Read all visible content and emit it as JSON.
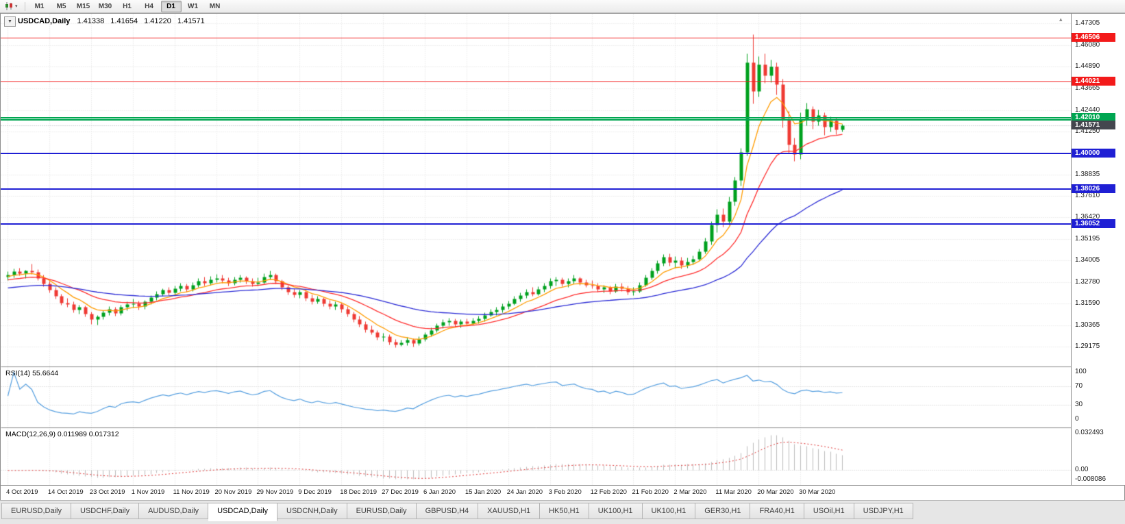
{
  "toolbar": {
    "chart_type_dropdown_glyph": "▾",
    "timeframes": [
      "M1",
      "M5",
      "M15",
      "M30",
      "H1",
      "H4",
      "D1",
      "W1",
      "MN"
    ],
    "active_timeframe": "D1"
  },
  "chart": {
    "title": {
      "dropdown_glyph": "▼",
      "symbol": "USDCAD,Daily",
      "open": "1.41338",
      "high": "1.41654",
      "low": "1.41220",
      "close": "1.41571"
    },
    "shift_marker_glyph": "▴",
    "colors": {
      "up": "#00a11e",
      "down": "#ef3a34",
      "ma_fast": "#ff9c00",
      "ma_mid": "#ff2e2e",
      "ma_slow": "#2b2bd6",
      "resistance": "#f31a1a",
      "pivot": "#00a651",
      "support": "#1f1fd4",
      "current_price_tag": "#44464e",
      "rsi_line": "#559fe0",
      "macd_hist": "#bdbdbd",
      "macd_signal": "#e03131",
      "grid": "#dedede"
    }
  },
  "rsi_panel": {
    "label": "RSI(14) 55.6644",
    "scale_ticks": [
      100,
      70,
      30,
      0
    ]
  },
  "macd_panel": {
    "label": "MACD(12,26,9) 0.011989 0.017312",
    "scale_ticks": [
      {
        "value": 0.032493,
        "text": "0.032493"
      },
      {
        "value": 0,
        "text": "0.00"
      },
      {
        "value": -0.008086,
        "text": "-0.008086"
      }
    ]
  },
  "bottom_tabs": {
    "items": [
      "EURUSD,Daily",
      "USDCHF,Daily",
      "AUDUSD,Daily",
      "USDCAD,Daily",
      "USDCNH,Daily",
      "EURUSD,Daily",
      "GBPUSD,H4",
      "XAUUSD,H1",
      "HK50,H1",
      "UK100,H1",
      "UK100,H1",
      "GER30,H1",
      "FRA40,H1",
      "USOil,H1",
      "USDJPY,H1"
    ],
    "active_index": 3
  },
  "chart_data": {
    "type": "candlestick",
    "symbol": "USDCAD",
    "timeframe": "Daily",
    "last_ohlc": {
      "open": 1.41338,
      "high": 1.41654,
      "low": 1.4122,
      "close": 1.41571
    },
    "ylim": [
      1.29175,
      1.47305
    ],
    "price_ticks": [
      1.47305,
      1.4608,
      1.4489,
      1.43665,
      1.4244,
      1.4125,
      1.38835,
      1.3761,
      1.3642,
      1.35195,
      1.34005,
      1.3278,
      1.3159,
      1.30365,
      1.29175
    ],
    "x_tick_labels": [
      "4 Oct 2019",
      "14 Oct 2019",
      "23 Oct 2019",
      "1 Nov 2019",
      "11 Nov 2019",
      "20 Nov 2019",
      "29 Nov 2019",
      "9 Dec 2019",
      "18 Dec 2019",
      "27 Dec 2019",
      "6 Jan 2020",
      "15 Jan 2020",
      "24 Jan 2020",
      "3 Feb 2020",
      "12 Feb 2020",
      "21 Feb 2020",
      "2 Mar 2020",
      "11 Mar 2020",
      "20 Mar 2020",
      "30 Mar 2020"
    ],
    "bars_per_x_tick": 7,
    "horizontal_levels": {
      "resistance": [
        {
          "price": 1.46506,
          "tagged": true
        },
        {
          "price": 1.44021,
          "tagged": true
        }
      ],
      "pivot": [
        {
          "price": 1.4201,
          "tagged": true
        },
        {
          "price": 1.4188,
          "tagged": false
        }
      ],
      "support": [
        {
          "price": 1.4,
          "tagged": true
        },
        {
          "price": 1.38026,
          "tagged": true
        },
        {
          "price": 1.36052,
          "tagged": true
        }
      ]
    },
    "current_price": 1.41571,
    "moving_averages": [
      {
        "name": "ma-fast",
        "type": "ema",
        "period": 7,
        "seed": 1.331,
        "color_key": "ma_fast"
      },
      {
        "name": "ma-medium",
        "type": "ema",
        "period": 18,
        "seed": 1.329,
        "color_key": "ma_mid"
      },
      {
        "name": "ma-slow",
        "type": "ema",
        "period": 50,
        "seed": 1.3245,
        "color_key": "ma_slow"
      }
    ],
    "rsi": {
      "period": 14,
      "display_value": 55.6644,
      "levels": [
        70,
        30
      ]
    },
    "macd": {
      "fast": 12,
      "slow": 26,
      "signal": 9,
      "display_macd": 0.011989,
      "display_signal": 0.017312,
      "scale_max": 0.032493,
      "scale_min": -0.008086
    },
    "candles": [
      [
        1.331,
        1.334,
        1.329,
        1.3322
      ],
      [
        1.3322,
        1.3355,
        1.3305,
        1.334
      ],
      [
        1.334,
        1.336,
        1.3318,
        1.333
      ],
      [
        1.333,
        1.3348,
        1.33,
        1.3342
      ],
      [
        1.3342,
        1.3382,
        1.3325,
        1.3335
      ],
      [
        1.3335,
        1.335,
        1.329,
        1.33
      ],
      [
        1.33,
        1.332,
        1.3255,
        1.327
      ],
      [
        1.327,
        1.3285,
        1.322,
        1.3235
      ],
      [
        1.3235,
        1.325,
        1.3185,
        1.32
      ],
      [
        1.32,
        1.3215,
        1.315,
        1.3165
      ],
      [
        1.3165,
        1.319,
        1.314,
        1.3155
      ],
      [
        1.3155,
        1.317,
        1.311,
        1.3125
      ],
      [
        1.3125,
        1.315,
        1.31,
        1.314
      ],
      [
        1.314,
        1.3148,
        1.3085,
        1.31
      ],
      [
        1.31,
        1.3115,
        1.3045,
        1.307
      ],
      [
        1.307,
        1.3095,
        1.304,
        1.3085
      ],
      [
        1.3085,
        1.312,
        1.307,
        1.311
      ],
      [
        1.311,
        1.3145,
        1.3095,
        1.313
      ],
      [
        1.313,
        1.314,
        1.309,
        1.3105
      ],
      [
        1.3105,
        1.315,
        1.3095,
        1.314
      ],
      [
        1.314,
        1.317,
        1.312,
        1.3155
      ],
      [
        1.3155,
        1.3185,
        1.3135,
        1.316
      ],
      [
        1.316,
        1.3175,
        1.3125,
        1.3145
      ],
      [
        1.3145,
        1.318,
        1.313,
        1.317
      ],
      [
        1.317,
        1.3205,
        1.3155,
        1.3195
      ],
      [
        1.3195,
        1.323,
        1.318,
        1.3215
      ],
      [
        1.3215,
        1.3245,
        1.32,
        1.3235
      ],
      [
        1.3235,
        1.325,
        1.3205,
        1.322
      ],
      [
        1.322,
        1.326,
        1.321,
        1.3245
      ],
      [
        1.3245,
        1.3275,
        1.323,
        1.326
      ],
      [
        1.326,
        1.327,
        1.3225,
        1.324
      ],
      [
        1.324,
        1.328,
        1.323,
        1.3265
      ],
      [
        1.3265,
        1.33,
        1.325,
        1.3285
      ],
      [
        1.3285,
        1.331,
        1.326,
        1.3275
      ],
      [
        1.3275,
        1.3315,
        1.3265,
        1.3295
      ],
      [
        1.3295,
        1.3325,
        1.328,
        1.33
      ],
      [
        1.33,
        1.332,
        1.3275,
        1.329
      ],
      [
        1.329,
        1.3305,
        1.326,
        1.3275
      ],
      [
        1.3275,
        1.331,
        1.3265,
        1.3295
      ],
      [
        1.3295,
        1.332,
        1.328,
        1.3305
      ],
      [
        1.3305,
        1.3315,
        1.327,
        1.3285
      ],
      [
        1.3285,
        1.33,
        1.3255,
        1.327
      ],
      [
        1.327,
        1.3305,
        1.326,
        1.328
      ],
      [
        1.328,
        1.333,
        1.327,
        1.331
      ],
      [
        1.331,
        1.3345,
        1.3295,
        1.332
      ],
      [
        1.332,
        1.333,
        1.327,
        1.3285
      ],
      [
        1.3285,
        1.3295,
        1.3235,
        1.325
      ],
      [
        1.325,
        1.3265,
        1.321,
        1.3225
      ],
      [
        1.3225,
        1.3245,
        1.3195,
        1.321
      ],
      [
        1.321,
        1.3235,
        1.319,
        1.3225
      ],
      [
        1.3225,
        1.324,
        1.3175,
        1.319
      ],
      [
        1.319,
        1.321,
        1.3155,
        1.317
      ],
      [
        1.317,
        1.32,
        1.316,
        1.3185
      ],
      [
        1.3185,
        1.3195,
        1.3145,
        1.316
      ],
      [
        1.316,
        1.318,
        1.313,
        1.3145
      ],
      [
        1.3145,
        1.317,
        1.3125,
        1.3155
      ],
      [
        1.3155,
        1.3165,
        1.311,
        1.313
      ],
      [
        1.313,
        1.3145,
        1.3085,
        1.31
      ],
      [
        1.31,
        1.3115,
        1.3055,
        1.307
      ],
      [
        1.307,
        1.309,
        1.303,
        1.3045
      ],
      [
        1.3045,
        1.306,
        1.3,
        1.3015
      ],
      [
        1.3015,
        1.3035,
        1.2985,
        1.3
      ],
      [
        1.3,
        1.301,
        1.2955,
        1.297
      ],
      [
        1.297,
        1.2995,
        1.295,
        1.2975
      ],
      [
        1.2975,
        1.2985,
        1.293,
        1.2945
      ],
      [
        1.2945,
        1.296,
        1.2915,
        1.293
      ],
      [
        1.293,
        1.2955,
        1.292,
        1.294
      ],
      [
        1.294,
        1.297,
        1.2925,
        1.2955
      ],
      [
        1.2955,
        1.2965,
        1.2918,
        1.2935
      ],
      [
        1.2935,
        1.2975,
        1.2925,
        1.296
      ],
      [
        1.296,
        1.3,
        1.295,
        1.2985
      ],
      [
        1.2985,
        1.3025,
        1.2975,
        1.301
      ],
      [
        1.301,
        1.305,
        1.3,
        1.3035
      ],
      [
        1.3035,
        1.307,
        1.302,
        1.3055
      ],
      [
        1.3055,
        1.308,
        1.3035,
        1.3065
      ],
      [
        1.3065,
        1.3075,
        1.303,
        1.3045
      ],
      [
        1.3045,
        1.307,
        1.3025,
        1.306
      ],
      [
        1.306,
        1.3075,
        1.3035,
        1.305
      ],
      [
        1.305,
        1.308,
        1.304,
        1.3065
      ],
      [
        1.3065,
        1.309,
        1.305,
        1.3075
      ],
      [
        1.3075,
        1.311,
        1.306,
        1.3095
      ],
      [
        1.3095,
        1.313,
        1.3085,
        1.3115
      ],
      [
        1.3115,
        1.314,
        1.3095,
        1.3125
      ],
      [
        1.3125,
        1.316,
        1.311,
        1.3145
      ],
      [
        1.3145,
        1.3175,
        1.313,
        1.316
      ],
      [
        1.316,
        1.32,
        1.315,
        1.3185
      ],
      [
        1.3185,
        1.322,
        1.317,
        1.3205
      ],
      [
        1.3205,
        1.324,
        1.319,
        1.3225
      ],
      [
        1.3225,
        1.325,
        1.32,
        1.3215
      ],
      [
        1.3215,
        1.3255,
        1.3205,
        1.324
      ],
      [
        1.324,
        1.3275,
        1.3225,
        1.326
      ],
      [
        1.326,
        1.33,
        1.3245,
        1.3285
      ],
      [
        1.3285,
        1.331,
        1.326,
        1.3295
      ],
      [
        1.3295,
        1.3305,
        1.3255,
        1.327
      ],
      [
        1.327,
        1.33,
        1.325,
        1.3285
      ],
      [
        1.3285,
        1.332,
        1.327,
        1.33
      ],
      [
        1.33,
        1.331,
        1.3265,
        1.328
      ],
      [
        1.328,
        1.3295,
        1.325,
        1.3265
      ],
      [
        1.3265,
        1.329,
        1.3245,
        1.326
      ],
      [
        1.326,
        1.3275,
        1.3225,
        1.324
      ],
      [
        1.324,
        1.3265,
        1.322,
        1.325
      ],
      [
        1.325,
        1.326,
        1.3215,
        1.323
      ],
      [
        1.323,
        1.327,
        1.322,
        1.3255
      ],
      [
        1.3255,
        1.3275,
        1.323,
        1.3245
      ],
      [
        1.3245,
        1.326,
        1.321,
        1.3225
      ],
      [
        1.3225,
        1.325,
        1.3205,
        1.323
      ],
      [
        1.323,
        1.328,
        1.322,
        1.3265
      ],
      [
        1.3265,
        1.332,
        1.3255,
        1.3305
      ],
      [
        1.3305,
        1.336,
        1.3295,
        1.3345
      ],
      [
        1.3345,
        1.34,
        1.333,
        1.3385
      ],
      [
        1.3385,
        1.3435,
        1.337,
        1.342
      ],
      [
        1.342,
        1.344,
        1.337,
        1.339
      ],
      [
        1.339,
        1.3425,
        1.336,
        1.34
      ],
      [
        1.34,
        1.342,
        1.3355,
        1.3375
      ],
      [
        1.3375,
        1.3415,
        1.336,
        1.3395
      ],
      [
        1.3395,
        1.343,
        1.338,
        1.341
      ],
      [
        1.341,
        1.3465,
        1.34,
        1.345
      ],
      [
        1.345,
        1.353,
        1.344,
        1.351
      ],
      [
        1.351,
        1.362,
        1.349,
        1.36
      ],
      [
        1.36,
        1.369,
        1.356,
        1.366
      ],
      [
        1.366,
        1.3695,
        1.359,
        1.362
      ],
      [
        1.362,
        1.376,
        1.36,
        1.373
      ],
      [
        1.373,
        1.387,
        1.371,
        1.385
      ],
      [
        1.385,
        1.403,
        1.382,
        1.401
      ],
      [
        1.401,
        1.456,
        1.399,
        1.451
      ],
      [
        1.451,
        1.4669,
        1.428,
        1.435
      ],
      [
        1.435,
        1.4545,
        1.432,
        1.45
      ],
      [
        1.45,
        1.456,
        1.4395,
        1.444
      ],
      [
        1.444,
        1.4525,
        1.44,
        1.449
      ],
      [
        1.449,
        1.451,
        1.433,
        1.439
      ],
      [
        1.439,
        1.442,
        1.4145,
        1.419
      ],
      [
        1.419,
        1.424,
        1.4,
        1.405
      ],
      [
        1.405,
        1.409,
        1.396,
        1.3995
      ],
      [
        1.3995,
        1.423,
        1.397,
        1.419
      ],
      [
        1.419,
        1.4285,
        1.416,
        1.425
      ],
      [
        1.425,
        1.4265,
        1.414,
        1.418
      ],
      [
        1.418,
        1.4245,
        1.416,
        1.4215
      ],
      [
        1.4215,
        1.423,
        1.4105,
        1.415
      ],
      [
        1.415,
        1.421,
        1.4125,
        1.4185
      ],
      [
        1.4185,
        1.42,
        1.411,
        1.4135
      ],
      [
        1.41338,
        1.41654,
        1.4122,
        1.41571
      ]
    ]
  }
}
